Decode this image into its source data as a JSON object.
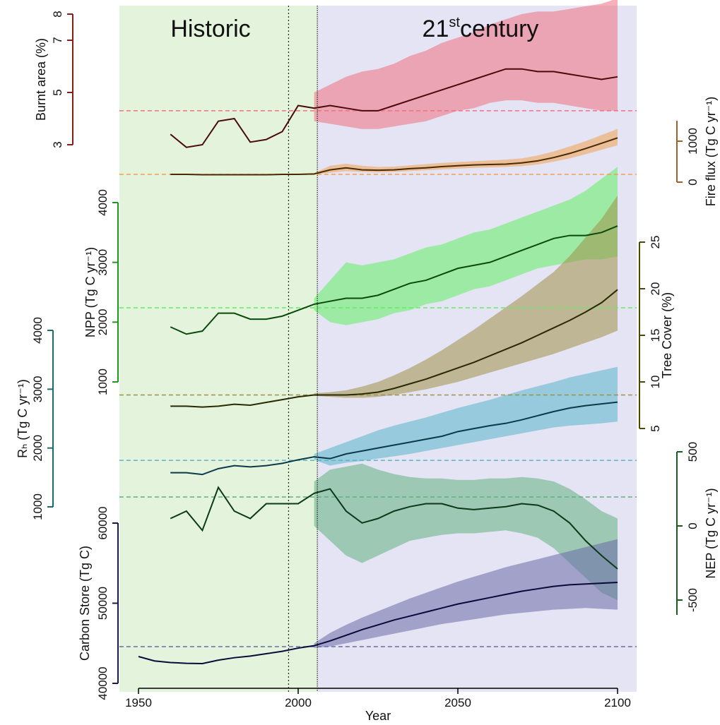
{
  "chart_data": {
    "type": "line",
    "xlabel": "Year",
    "annotations": [
      "Historic",
      "21",
      "st",
      "century"
    ],
    "xlim": [
      1944,
      2106
    ],
    "xticks": [
      1950,
      2000,
      2050,
      2100
    ],
    "vlines": [
      1997,
      2006
    ],
    "x": [
      1950,
      1955,
      1960,
      1965,
      1970,
      1975,
      1980,
      1985,
      1990,
      1995,
      2000,
      2005,
      2010,
      2015,
      2020,
      2025,
      2030,
      2035,
      2040,
      2045,
      2050,
      2055,
      2060,
      2065,
      2070,
      2075,
      2080,
      2085,
      2090,
      2095,
      2100
    ],
    "panels": [
      {
        "ylabel": "Burnt area (%)",
        "ylim": [
          3,
          8
        ],
        "yticks": [
          3,
          5,
          7,
          8
        ],
        "color": "#8b1a1a",
        "line_color": "#4a0a0a",
        "fill_color": "#f07080",
        "reference": 4.3,
        "values": [
          null,
          null,
          3.4,
          2.9,
          3.0,
          3.9,
          4.0,
          3.1,
          3.2,
          3.5,
          4.5,
          4.4,
          4.5,
          4.4,
          4.3,
          4.3,
          4.5,
          4.7,
          4.9,
          5.1,
          5.3,
          5.5,
          5.7,
          5.9,
          5.9,
          5.8,
          5.8,
          5.7,
          5.6,
          5.5,
          5.6
        ],
        "lower": [
          null,
          null,
          null,
          null,
          null,
          null,
          null,
          null,
          null,
          null,
          null,
          3.9,
          3.8,
          3.7,
          3.6,
          3.6,
          3.7,
          3.8,
          3.9,
          4.1,
          4.3,
          4.4,
          4.6,
          4.7,
          4.7,
          4.6,
          4.6,
          4.5,
          4.4,
          4.3,
          4.3
        ],
        "upper": [
          null,
          null,
          null,
          null,
          null,
          null,
          null,
          null,
          null,
          null,
          null,
          5.0,
          5.3,
          5.6,
          5.8,
          5.9,
          6.1,
          6.4,
          6.6,
          6.9,
          7.1,
          7.3,
          7.6,
          7.8,
          8.0,
          8.1,
          8.1,
          8.2,
          8.3,
          8.4,
          8.6
        ]
      },
      {
        "ylabel": "Fire flux (Tg C yr⁻¹)",
        "ylim": [
          0,
          1500
        ],
        "yticks": [
          0,
          1000
        ],
        "color": "#a0602a",
        "line_color": "#4a2a00",
        "fill_color": "#f0a050",
        "reference": 190,
        "values": [
          null,
          null,
          190,
          190,
          180,
          180,
          180,
          180,
          180,
          190,
          190,
          200,
          300,
          350,
          300,
          290,
          300,
          330,
          350,
          380,
          400,
          420,
          430,
          440,
          470,
          520,
          600,
          700,
          820,
          950,
          1080
        ],
        "lower": [
          null,
          null,
          null,
          null,
          null,
          null,
          null,
          null,
          null,
          null,
          null,
          190,
          230,
          270,
          250,
          240,
          250,
          270,
          290,
          310,
          330,
          350,
          360,
          370,
          390,
          430,
          500,
          580,
          680,
          790,
          900
        ],
        "upper": [
          null,
          null,
          null,
          null,
          null,
          null,
          null,
          null,
          null,
          null,
          null,
          220,
          400,
          450,
          400,
          370,
          380,
          410,
          440,
          470,
          490,
          510,
          530,
          550,
          580,
          650,
          750,
          870,
          1000,
          1150,
          1300
        ]
      },
      {
        "ylabel": "NPP (Tg C yr⁻¹)",
        "ylim": [
          1000,
          4000
        ],
        "yticks": [
          1000,
          2000,
          3000,
          4000
        ],
        "color": "#1a9c1a",
        "line_color": "#0a4a0a",
        "fill_color": "#60ee60",
        "reference": 2240,
        "values": [
          null,
          null,
          1920,
          1800,
          1850,
          2150,
          2150,
          2050,
          2050,
          2100,
          2200,
          2300,
          2350,
          2400,
          2400,
          2450,
          2550,
          2650,
          2700,
          2800,
          2900,
          2950,
          3000,
          3100,
          3200,
          3300,
          3400,
          3450,
          3450,
          3500,
          3610
        ],
        "lower": [
          null,
          null,
          null,
          null,
          null,
          null,
          null,
          null,
          null,
          null,
          null,
          2200,
          2000,
          1950,
          2000,
          2050,
          2150,
          2200,
          2300,
          2350,
          2450,
          2550,
          2600,
          2700,
          2800,
          2900,
          2950,
          3000,
          3050,
          3050,
          3100
        ],
        "upper": [
          null,
          null,
          null,
          null,
          null,
          null,
          null,
          null,
          null,
          null,
          null,
          2400,
          2700,
          3000,
          2950,
          3000,
          3050,
          3150,
          3250,
          3300,
          3400,
          3500,
          3550,
          3650,
          3750,
          3850,
          3950,
          4050,
          4200,
          4400,
          4600
        ]
      },
      {
        "ylabel": "Tree Cover (%)",
        "ylim": [
          5,
          25
        ],
        "yticks": [
          5,
          10,
          15,
          20,
          25
        ],
        "color": "#4a4a00",
        "line_color": "#2a2a00",
        "fill_color": "#a09048",
        "reference": 8.6,
        "values": [
          null,
          null,
          7.4,
          7.4,
          7.3,
          7.4,
          7.6,
          7.5,
          7.8,
          8.1,
          8.4,
          8.6,
          8.6,
          8.6,
          8.7,
          8.9,
          9.3,
          9.8,
          10.3,
          10.9,
          11.5,
          12.1,
          12.8,
          13.5,
          14.2,
          15.0,
          15.8,
          16.6,
          17.5,
          18.5,
          19.9
        ],
        "lower": [
          null,
          null,
          null,
          null,
          null,
          null,
          null,
          null,
          null,
          null,
          null,
          8.5,
          8.4,
          8.3,
          8.3,
          8.4,
          8.6,
          8.9,
          9.2,
          9.6,
          10.0,
          10.5,
          11.0,
          11.5,
          12.0,
          12.5,
          13.0,
          13.6,
          14.2,
          14.8,
          15.5
        ],
        "upper": [
          null,
          null,
          null,
          null,
          null,
          null,
          null,
          null,
          null,
          null,
          null,
          8.8,
          8.9,
          9.1,
          9.5,
          10.0,
          10.7,
          11.5,
          12.4,
          13.4,
          14.5,
          15.6,
          16.8,
          18.0,
          19.2,
          20.5,
          21.8,
          23.5,
          25.5,
          27.5,
          30.0
        ]
      },
      {
        "ylabel": "Rₕ (Tg C yr⁻¹)",
        "ylim": [
          1000,
          4000
        ],
        "yticks": [
          1000,
          2000,
          3000,
          4000
        ],
        "color": "#1a6b6b",
        "line_color": "#0a3a4a",
        "fill_color": "#58b4c8",
        "reference": 1790,
        "values": [
          null,
          null,
          1580,
          1580,
          1550,
          1650,
          1700,
          1680,
          1700,
          1740,
          1800,
          1850,
          1820,
          1900,
          1950,
          2000,
          2050,
          2100,
          2150,
          2200,
          2280,
          2330,
          2380,
          2420,
          2480,
          2550,
          2620,
          2680,
          2720,
          2750,
          2780
        ],
        "lower": [
          null,
          null,
          null,
          null,
          null,
          null,
          null,
          null,
          null,
          null,
          null,
          1800,
          1700,
          1750,
          1780,
          1820,
          1860,
          1900,
          1950,
          2000,
          2050,
          2100,
          2150,
          2200,
          2250,
          2300,
          2350,
          2380,
          2400,
          2420,
          2450
        ],
        "upper": [
          null,
          null,
          null,
          null,
          null,
          null,
          null,
          null,
          null,
          null,
          null,
          1900,
          2000,
          2100,
          2200,
          2300,
          2380,
          2450,
          2520,
          2600,
          2680,
          2750,
          2820,
          2900,
          2980,
          3050,
          3120,
          3200,
          3260,
          3320,
          3380
        ]
      },
      {
        "ylabel": "NEP (Tg C yr⁻¹)",
        "ylim": [
          -600,
          500
        ],
        "yticks": [
          -500,
          0,
          500
        ],
        "color": "#1a5c1a",
        "line_color": "#0a3a1a",
        "fill_color": "#60b080",
        "reference": 195,
        "values": [
          null,
          null,
          50,
          100,
          -30,
          260,
          100,
          50,
          150,
          150,
          150,
          220,
          250,
          100,
          20,
          50,
          100,
          130,
          150,
          150,
          120,
          110,
          120,
          130,
          150,
          140,
          100,
          20,
          -100,
          -200,
          -290
        ],
        "lower": [
          null,
          null,
          null,
          null,
          null,
          null,
          null,
          null,
          null,
          null,
          null,
          0,
          -100,
          -200,
          -250,
          -200,
          -150,
          -100,
          -80,
          -60,
          -50,
          -50,
          -40,
          -30,
          -50,
          -80,
          -150,
          -250,
          -350,
          -450,
          -500
        ],
        "upper": [
          null,
          null,
          null,
          null,
          null,
          null,
          null,
          null,
          null,
          null,
          null,
          300,
          380,
          400,
          420,
          380,
          350,
          330,
          320,
          320,
          310,
          310,
          320,
          320,
          330,
          320,
          300,
          250,
          180,
          100,
          50
        ]
      },
      {
        "ylabel": "Carbon Store (Tg C)",
        "ylim": [
          40000,
          60000
        ],
        "yticks": [
          40000,
          50000,
          60000
        ],
        "color": "#1a1a4a",
        "line_color": "#0a0a3a",
        "fill_color": "#6a6aa8",
        "reference": 44580,
        "values": [
          43350,
          42800,
          42600,
          42500,
          42470,
          42900,
          43200,
          43400,
          43700,
          44000,
          44400,
          44700,
          45300,
          46000,
          46700,
          47300,
          47900,
          48400,
          48900,
          49400,
          49900,
          50300,
          50700,
          51100,
          51500,
          51800,
          52100,
          52300,
          52400,
          52500,
          52600
        ],
        "lower": [
          null,
          null,
          null,
          null,
          null,
          null,
          null,
          null,
          null,
          null,
          null,
          44400,
          44600,
          45000,
          45400,
          45800,
          46200,
          46600,
          47000,
          47400,
          47700,
          48000,
          48300,
          48600,
          48800,
          49000,
          49200,
          49300,
          49400,
          49300,
          49200
        ],
        "upper": [
          null,
          null,
          null,
          null,
          null,
          null,
          null,
          null,
          null,
          null,
          null,
          45000,
          46300,
          47300,
          48200,
          49000,
          49800,
          50600,
          51300,
          52000,
          52700,
          53300,
          53900,
          54500,
          55000,
          55500,
          56000,
          56500,
          57000,
          57500,
          58000
        ]
      }
    ]
  }
}
